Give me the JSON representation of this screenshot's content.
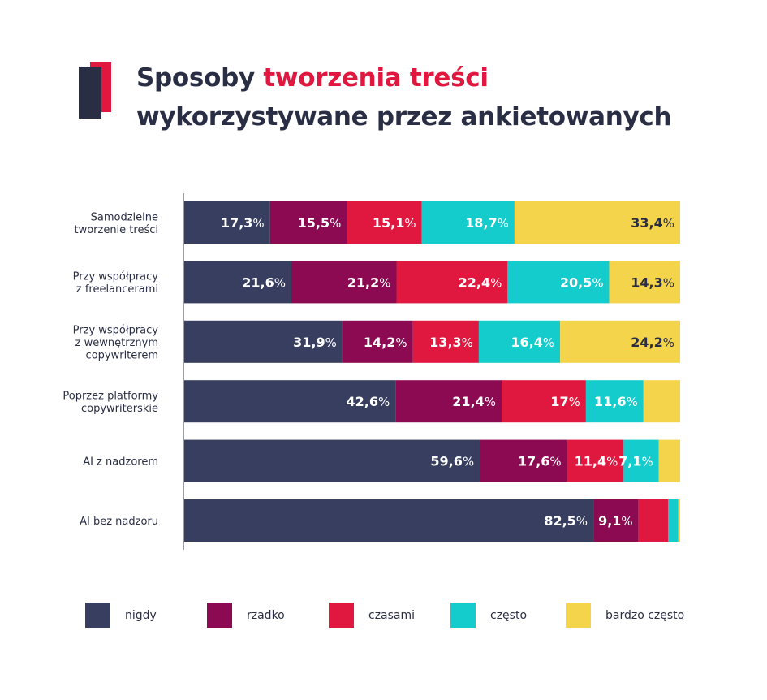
{
  "title": {
    "part1": "Sposoby ",
    "accent": "tworzenia treści",
    "line2": "wykorzystywane przez ankietowanych"
  },
  "colors": {
    "navy": "#383e5f",
    "plum": "#8b0a52",
    "crimson": "#e0173f",
    "teal": "#14cccb",
    "yellow": "#f4d44b",
    "text": "#2a2e45"
  },
  "chart_data": {
    "type": "bar",
    "orientation": "horizontal",
    "stacked": true,
    "xlim": [
      0,
      100
    ],
    "grid": false,
    "legend_position": "bottom",
    "categories": [
      [
        "Samodzielne",
        "tworzenie treści"
      ],
      [
        "Przy współpracy",
        "z freelancerami"
      ],
      [
        "Przy współpracy",
        "z wewnętrznym",
        "copywriterem"
      ],
      [
        "Poprzez platformy",
        "copywriterskie"
      ],
      [
        "AI z nadzorem"
      ],
      [
        "AI bez nadzoru"
      ]
    ],
    "series": [
      {
        "name": "nigdy",
        "color": "#383e5f",
        "values": [
          17.3,
          21.6,
          31.9,
          42.6,
          59.6,
          82.5
        ],
        "labels": [
          "17,3%",
          "21,6%",
          "31,9%",
          "42,6%",
          "59,6%",
          "82,5%"
        ]
      },
      {
        "name": "rzadko",
        "color": "#8b0a52",
        "values": [
          15.5,
          21.2,
          14.2,
          21.4,
          17.6,
          9.1
        ],
        "labels": [
          "15,5%",
          "21,2%",
          "14,2%",
          "21,4%",
          "17,6%",
          "9,1%"
        ]
      },
      {
        "name": "czasami",
        "color": "#e0173f",
        "values": [
          15.1,
          22.4,
          13.3,
          17.0,
          11.4,
          6.0
        ],
        "labels": [
          "15,1%",
          "22,4%",
          "13,3%",
          "17%",
          "11,4%",
          ""
        ]
      },
      {
        "name": "często",
        "color": "#14cccb",
        "values": [
          18.7,
          20.5,
          16.4,
          11.6,
          7.1,
          2.0
        ],
        "labels": [
          "18,7%",
          "20,5%",
          "16,4%",
          "11,6%",
          "7,1%",
          ""
        ]
      },
      {
        "name": "bardzo często",
        "color": "#f4d44b",
        "values": [
          33.4,
          14.3,
          24.2,
          7.4,
          4.3,
          0.4
        ],
        "labels": [
          "33,4%",
          "14,3%",
          "24,2%",
          "",
          "",
          ""
        ]
      }
    ]
  }
}
